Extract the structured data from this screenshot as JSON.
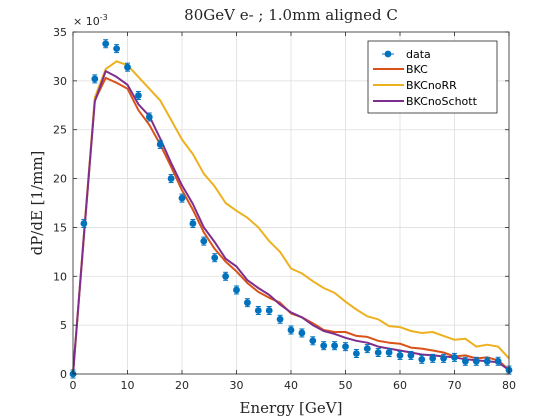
{
  "chart_data": {
    "type": "line",
    "title": "80GeV e- ; 1.0mm aligned C",
    "xlabel": "Energy [GeV]",
    "ylabel": "dP/dE [1/mm]",
    "y_exponent_label": "× 10",
    "y_exponent_power": "-3",
    "xlim": [
      0,
      80
    ],
    "ylim": [
      0,
      35
    ],
    "xticks": [
      0,
      10,
      20,
      30,
      40,
      50,
      60,
      70,
      80
    ],
    "yticks": [
      0,
      5,
      10,
      15,
      20,
      25,
      30,
      35
    ],
    "grid": true,
    "legend_position": "top-right",
    "series": [
      {
        "name": "data",
        "kind": "scatter-errorbar",
        "color": "#0072BD",
        "x": [
          0,
          2,
          4,
          6,
          8,
          10,
          12,
          14,
          16,
          18,
          20,
          22,
          24,
          26,
          28,
          30,
          32,
          34,
          36,
          38,
          40,
          42,
          44,
          46,
          48,
          50,
          52,
          54,
          56,
          58,
          60,
          62,
          64,
          66,
          68,
          70,
          72,
          74,
          76,
          78,
          80
        ],
        "y": [
          0,
          15.4,
          30.2,
          33.8,
          33.3,
          31.4,
          28.5,
          26.3,
          23.5,
          20.0,
          18.0,
          15.4,
          13.6,
          11.9,
          10.0,
          8.6,
          7.3,
          6.5,
          6.5,
          5.6,
          4.5,
          4.2,
          3.4,
          2.9,
          2.9,
          2.8,
          2.1,
          2.6,
          2.2,
          2.2,
          1.9,
          1.9,
          1.5,
          1.6,
          1.6,
          1.7,
          1.3,
          1.3,
          1.3,
          1.3,
          0.4
        ]
      },
      {
        "name": "BKC",
        "kind": "line",
        "color": "#D95319",
        "x": [
          0,
          2,
          4,
          6,
          8,
          10,
          12,
          14,
          16,
          18,
          20,
          22,
          24,
          26,
          28,
          30,
          32,
          34,
          36,
          38,
          40,
          42,
          44,
          46,
          48,
          50,
          52,
          54,
          56,
          58,
          60,
          62,
          64,
          66,
          68,
          70,
          72,
          74,
          76,
          78,
          80
        ],
        "y": [
          0,
          14.0,
          28.0,
          30.3,
          29.8,
          29.2,
          27.0,
          25.5,
          23.5,
          21.2,
          18.8,
          16.8,
          14.5,
          12.8,
          11.5,
          10.5,
          9.3,
          8.4,
          7.8,
          7.3,
          6.2,
          5.8,
          5.2,
          4.5,
          4.3,
          4.3,
          3.9,
          3.8,
          3.4,
          3.2,
          3.1,
          2.7,
          2.6,
          2.4,
          2.2,
          1.8,
          1.9,
          1.6,
          1.7,
          1.4,
          0.4
        ]
      },
      {
        "name": "BKCnoRR",
        "kind": "line",
        "color": "#EDB120",
        "x": [
          0,
          2,
          4,
          6,
          8,
          10,
          12,
          14,
          16,
          18,
          20,
          22,
          24,
          26,
          28,
          30,
          32,
          34,
          36,
          38,
          40,
          42,
          44,
          46,
          48,
          50,
          52,
          54,
          56,
          58,
          60,
          62,
          64,
          66,
          68,
          70,
          72,
          74,
          76,
          78,
          80
        ],
        "y": [
          0,
          14.3,
          28.3,
          31.2,
          32.0,
          31.6,
          30.4,
          29.2,
          28.0,
          26.0,
          24.0,
          22.5,
          20.5,
          19.2,
          17.5,
          16.7,
          16.0,
          15.0,
          13.6,
          12.5,
          10.8,
          10.3,
          9.5,
          8.8,
          8.3,
          7.4,
          6.6,
          5.9,
          5.6,
          4.9,
          4.8,
          4.4,
          4.2,
          4.3,
          3.9,
          3.5,
          3.6,
          2.8,
          3.0,
          2.8,
          1.6
        ]
      },
      {
        "name": "BKCnoSchott",
        "kind": "line",
        "color": "#7E2F8E",
        "x": [
          0,
          2,
          4,
          6,
          8,
          10,
          12,
          14,
          16,
          18,
          20,
          22,
          24,
          26,
          28,
          30,
          32,
          34,
          36,
          38,
          40,
          42,
          44,
          46,
          48,
          50,
          52,
          54,
          56,
          58,
          60,
          62,
          64,
          66,
          68,
          70,
          72,
          74,
          76,
          78,
          80
        ],
        "y": [
          0,
          14.2,
          27.9,
          31.0,
          30.4,
          29.6,
          27.6,
          26.4,
          24.1,
          21.6,
          19.3,
          17.4,
          15.0,
          13.5,
          11.8,
          11.0,
          9.6,
          8.8,
          8.1,
          7.1,
          6.3,
          5.8,
          5.0,
          4.4,
          4.1,
          3.7,
          3.4,
          3.2,
          2.8,
          2.6,
          2.4,
          2.2,
          2.0,
          1.9,
          1.8,
          1.7,
          1.5,
          1.4,
          1.3,
          1.2,
          0.4
        ]
      }
    ]
  }
}
